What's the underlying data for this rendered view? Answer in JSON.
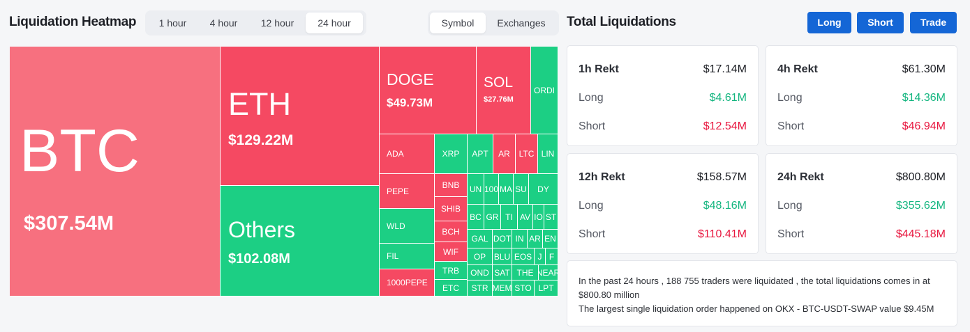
{
  "header": {
    "title": "Liquidation Heatmap",
    "time_tabs": [
      {
        "label": "1 hour"
      },
      {
        "label": "4 hour"
      },
      {
        "label": "12 hour"
      },
      {
        "label": "24 hour",
        "active": true
      }
    ],
    "view_tabs": [
      {
        "label": "Symbol",
        "active": true
      },
      {
        "label": "Exchanges"
      }
    ]
  },
  "heatmap": {
    "tiles": [
      {
        "symbol": "BTC",
        "value": "$307.54M",
        "color": "btc"
      },
      {
        "symbol": "ETH",
        "value": "$129.22M",
        "color": "red"
      },
      {
        "symbol": "Others",
        "value": "$102.08M",
        "color": "green"
      },
      {
        "symbol": "DOGE",
        "value": "$49.73M",
        "color": "red"
      },
      {
        "symbol": "SOL",
        "value": "$27.76M",
        "color": "red"
      },
      {
        "symbol": "ORDI",
        "color": "green"
      },
      {
        "symbol": "ADA",
        "color": "red"
      },
      {
        "symbol": "PEPE",
        "color": "red"
      },
      {
        "symbol": "WLD",
        "color": "green"
      },
      {
        "symbol": "FIL",
        "color": "green"
      },
      {
        "symbol": "1000PEPE",
        "color": "red"
      },
      {
        "symbol": "XRP",
        "color": "green"
      },
      {
        "symbol": "APT",
        "color": "green"
      },
      {
        "symbol": "AR",
        "color": "red"
      },
      {
        "symbol": "LTC",
        "color": "red"
      },
      {
        "symbol": "LIN",
        "color": "green"
      },
      {
        "symbol": "BNB",
        "color": "red"
      },
      {
        "symbol": "SHIB",
        "color": "red"
      },
      {
        "symbol": "BCH",
        "color": "red"
      },
      {
        "symbol": "WIF",
        "color": "red"
      },
      {
        "symbol": "TRB",
        "color": "green"
      },
      {
        "symbol": "ETC",
        "color": "green"
      },
      {
        "symbol": "UN",
        "color": "green"
      },
      {
        "symbol": "100",
        "color": "green"
      },
      {
        "symbol": "MA",
        "color": "green"
      },
      {
        "symbol": "SU",
        "color": "green"
      },
      {
        "symbol": "DY",
        "color": "green"
      },
      {
        "symbol": "BC",
        "color": "green"
      },
      {
        "symbol": "GR",
        "color": "green"
      },
      {
        "symbol": "TI",
        "color": "green"
      },
      {
        "symbol": "AV",
        "color": "green"
      },
      {
        "symbol": "IO",
        "color": "green"
      },
      {
        "symbol": "ST",
        "color": "green"
      },
      {
        "symbol": "GAL",
        "color": "green"
      },
      {
        "symbol": "DOT",
        "color": "green"
      },
      {
        "symbol": "IN",
        "color": "green"
      },
      {
        "symbol": "AR",
        "color": "green"
      },
      {
        "symbol": "EN",
        "color": "green"
      },
      {
        "symbol": "OP",
        "color": "green"
      },
      {
        "symbol": "BLU",
        "color": "green"
      },
      {
        "symbol": "EOS",
        "color": "green"
      },
      {
        "symbol": "J",
        "color": "green"
      },
      {
        "symbol": "F",
        "color": "green"
      },
      {
        "symbol": "OND",
        "color": "green"
      },
      {
        "symbol": "SAT",
        "color": "green"
      },
      {
        "symbol": "THE",
        "color": "green"
      },
      {
        "symbol": "NEAR",
        "color": "green"
      },
      {
        "symbol": "STR",
        "color": "green"
      },
      {
        "symbol": "MEM",
        "color": "green"
      },
      {
        "symbol": "STO",
        "color": "green"
      },
      {
        "symbol": "LPT",
        "color": "green"
      }
    ]
  },
  "totals": {
    "title": "Total Liquidations",
    "buttons": {
      "long": "Long",
      "short": "Short",
      "trade": "Trade"
    },
    "cards": [
      {
        "label": "1h Rekt",
        "total": "$17.14M",
        "long_label": "Long",
        "long": "$4.61M",
        "short_label": "Short",
        "short": "$12.54M"
      },
      {
        "label": "4h Rekt",
        "total": "$61.30M",
        "long_label": "Long",
        "long": "$14.36M",
        "short_label": "Short",
        "short": "$46.94M"
      },
      {
        "label": "12h Rekt",
        "total": "$158.57M",
        "long_label": "Long",
        "long": "$48.16M",
        "short_label": "Short",
        "short": "$110.41M"
      },
      {
        "label": "24h Rekt",
        "total": "$800.80M",
        "long_label": "Long",
        "long": "$355.62M",
        "short_label": "Short",
        "short": "$445.18M"
      }
    ],
    "summary_line1": "In the past 24 hours , 188 755 traders were liquidated , the total liquidations comes in at $800.80 million",
    "summary_line2": "The largest single liquidation order happened on OKX - BTC-USDT-SWAP value $9.45M"
  },
  "colors": {
    "accent": "#1466d6",
    "long": "#13b57f",
    "short": "#e8173f",
    "tile_red": "#f54962",
    "tile_green": "#1ccf84",
    "tile_btc": "#f7707f"
  }
}
